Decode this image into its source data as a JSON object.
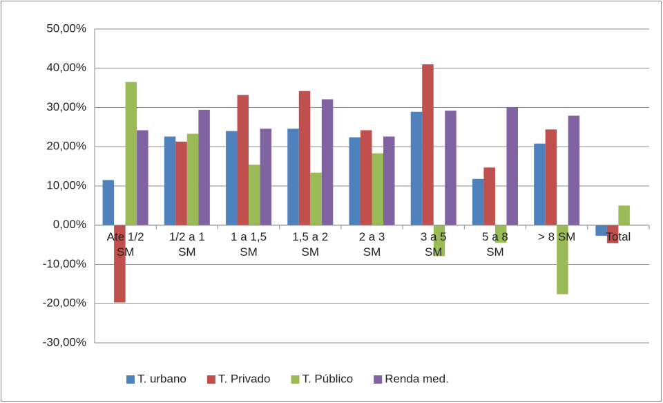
{
  "chart_data": {
    "type": "bar",
    "categories": [
      "Ate 1/2 SM",
      "1/2 a 1 SM",
      "1 a 1,5 SM",
      "1,5 a 2 SM",
      "2 a 3 SM",
      "3 a 5 SM",
      "5 a 8 SM",
      "> 8 SM",
      "Total"
    ],
    "series": [
      {
        "name": "T. urbano",
        "color": "#4f81bd",
        "values": [
          11.5,
          22.6,
          24.0,
          24.6,
          22.4,
          28.9,
          11.8,
          20.8,
          -2.7
        ]
      },
      {
        "name": "T. Privado",
        "color": "#c0504d",
        "values": [
          -19.7,
          21.3,
          33.2,
          34.2,
          24.2,
          41.0,
          14.7,
          24.4,
          -4.6
        ]
      },
      {
        "name": "T. Público",
        "color": "#9bbb59",
        "values": [
          36.5,
          23.3,
          15.4,
          13.4,
          18.3,
          -7.9,
          -4.5,
          -17.6,
          5.0
        ]
      },
      {
        "name": "Renda med.",
        "color": "#8064a2",
        "values": [
          24.2,
          29.4,
          24.6,
          32.1,
          22.6,
          29.2,
          30.1,
          27.9,
          null
        ]
      }
    ],
    "ylim": [
      -30,
      50
    ],
    "yticks": [
      {
        "value": -30,
        "label": "-30,00%"
      },
      {
        "value": -20,
        "label": "-20,00%"
      },
      {
        "value": -10,
        "label": "-10,00%"
      },
      {
        "value": 0,
        "label": "0,00%"
      },
      {
        "value": 10,
        "label": "10,00%"
      },
      {
        "value": 20,
        "label": "20,00%"
      },
      {
        "value": 30,
        "label": "30,00%"
      },
      {
        "value": 40,
        "label": "40,00%"
      },
      {
        "value": 50,
        "label": "50,00%"
      }
    ],
    "grid": true,
    "legend": "bottom"
  }
}
